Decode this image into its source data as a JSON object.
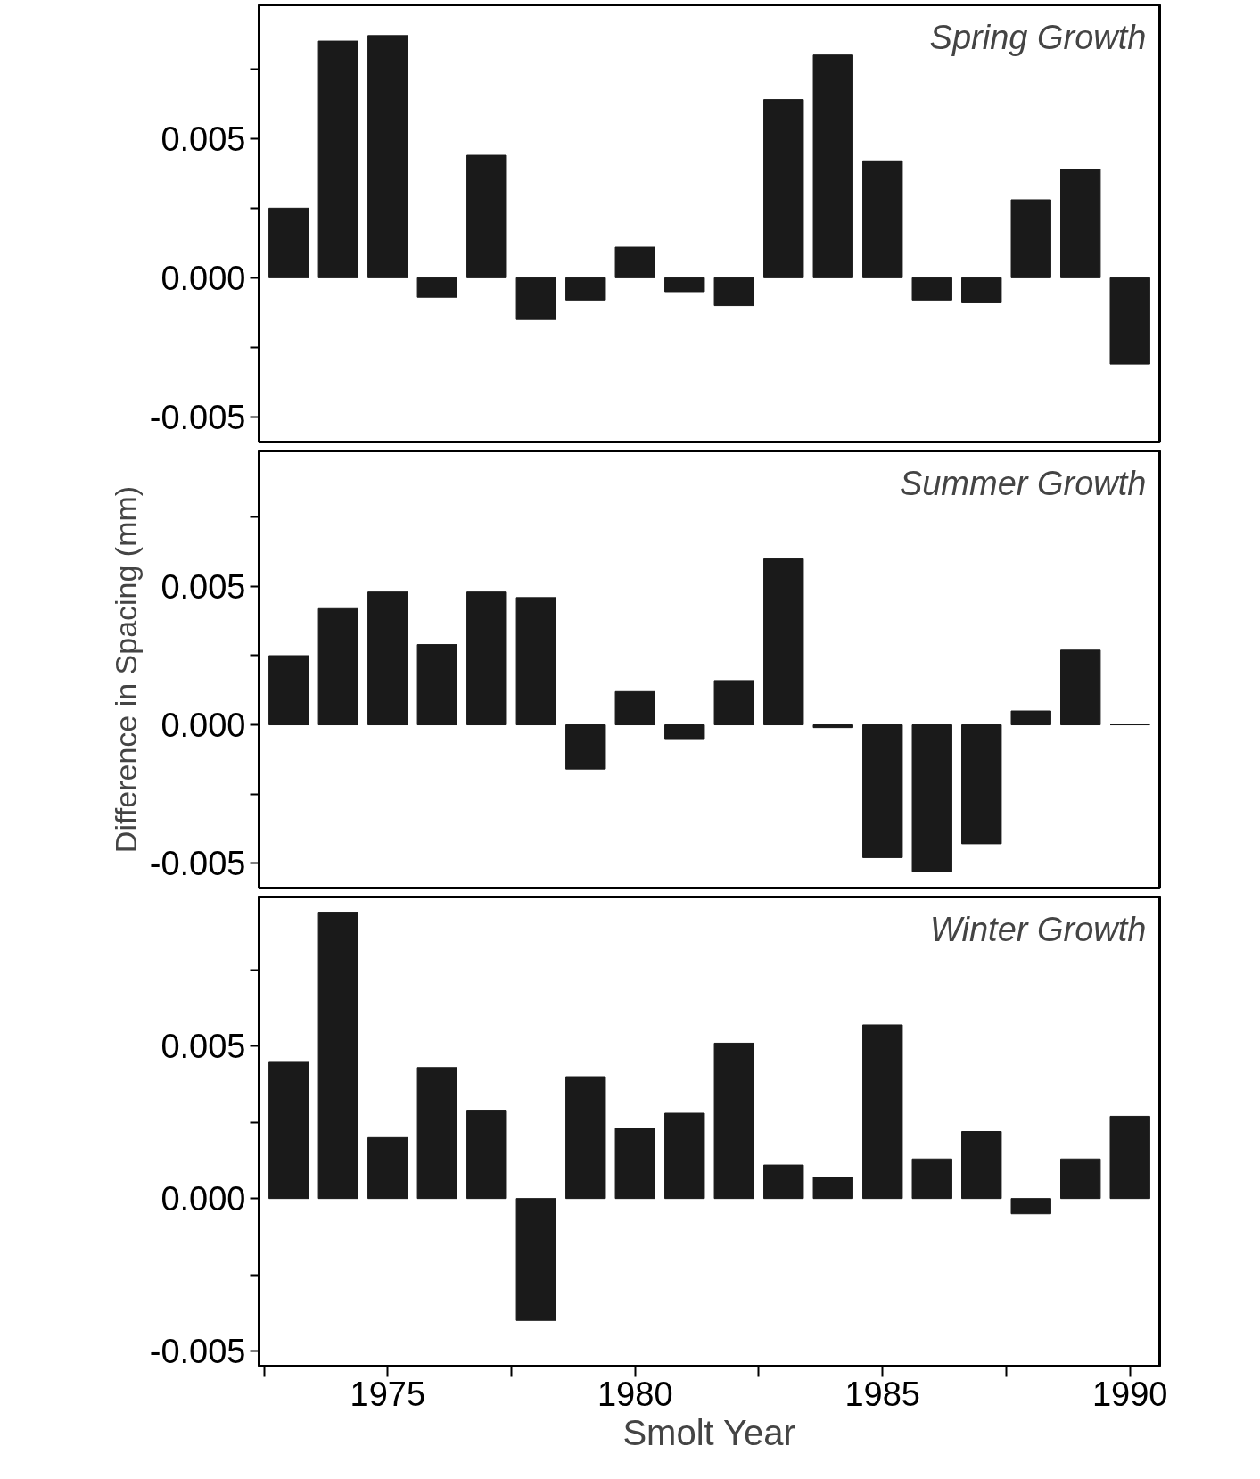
{
  "chart_data": [
    {
      "type": "bar",
      "x": [
        1973,
        1974,
        1975,
        1976,
        1977,
        1978,
        1979,
        1980,
        1981,
        1982,
        1983,
        1984,
        1985,
        1986,
        1987,
        1988,
        1989,
        1990
      ],
      "series": [
        {
          "color": "#1a1a1a",
          "values": [
            0.0025,
            0.0085,
            0.0087,
            -0.0007,
            0.0044,
            -0.0015,
            -0.0008,
            0.0011,
            -0.0005,
            -0.001,
            0.0064,
            0.008,
            0.0042,
            -0.0008,
            -0.0009,
            0.0028,
            0.0039,
            -0.0031
          ]
        }
      ],
      "xlim": [
        1972.4,
        1990.6
      ],
      "ylim": [
        -0.0059,
        0.0098
      ],
      "yticks": [
        {
          "value": -0.005,
          "label": "-0.005"
        },
        {
          "value": -0.0025,
          "label": null
        },
        {
          "value": 0,
          "label": "0.000"
        },
        {
          "value": 0.0025,
          "label": null
        },
        {
          "value": 0.005,
          "label": "0.005"
        },
        {
          "value": 0.0075,
          "label": null
        }
      ],
      "tick_labels": "y",
      "annotations": [
        "Spring Growth"
      ]
    },
    {
      "type": "bar",
      "x": [
        1973,
        1974,
        1975,
        1976,
        1977,
        1978,
        1979,
        1980,
        1981,
        1982,
        1983,
        1984,
        1985,
        1986,
        1987,
        1988,
        1989,
        1990
      ],
      "series": [
        {
          "color": "#1a1a1a",
          "values": [
            0.0025,
            0.0042,
            0.0048,
            0.0029,
            0.0048,
            0.0046,
            -0.0016,
            0.0012,
            -0.0005,
            0.0016,
            0.006,
            -0.0001,
            -0.0048,
            -0.0053,
            -0.0043,
            0.0005,
            0.0027,
            0.0
          ]
        }
      ],
      "xlim": [
        1972.4,
        1990.6
      ],
      "ylim": [
        -0.0059,
        0.0099
      ],
      "yticks": [
        {
          "value": -0.005,
          "label": "-0.005"
        },
        {
          "value": -0.0025,
          "label": null
        },
        {
          "value": 0,
          "label": "0.000"
        },
        {
          "value": 0.0025,
          "label": null
        },
        {
          "value": 0.005,
          "label": "0.005"
        },
        {
          "value": 0.0075,
          "label": null
        }
      ],
      "ylabel": "Difference in Spacing (mm)",
      "tick_labels": "y",
      "annotations": [
        "Summer Growth"
      ]
    },
    {
      "type": "bar",
      "x": [
        1973,
        1974,
        1975,
        1976,
        1977,
        1978,
        1979,
        1980,
        1981,
        1982,
        1983,
        1984,
        1985,
        1986,
        1987,
        1988,
        1989,
        1990
      ],
      "series": [
        {
          "color": "#1a1a1a",
          "values": [
            0.0045,
            0.0094,
            0.002,
            0.0043,
            0.0029,
            -0.004,
            0.004,
            0.0023,
            0.0028,
            0.0051,
            0.0011,
            0.0007,
            0.0057,
            0.0013,
            0.0022,
            -0.0005,
            0.0013,
            0.0027
          ]
        }
      ],
      "xlim": [
        1972.4,
        1990.6
      ],
      "ylim": [
        -0.0055,
        0.0099
      ],
      "xticks": [
        {
          "value": 1972.5,
          "label": null
        },
        1975,
        {
          "value": 1977.5,
          "label": null
        },
        1980,
        {
          "value": 1982.5,
          "label": null
        },
        1985,
        {
          "value": 1987.5,
          "label": null
        },
        1990
      ],
      "yticks": [
        {
          "value": -0.005,
          "label": "-0.005"
        },
        {
          "value": -0.0025,
          "label": null
        },
        {
          "value": 0,
          "label": "0.000"
        },
        {
          "value": 0.0025,
          "label": null
        },
        {
          "value": 0.005,
          "label": "0.005"
        },
        {
          "value": 0.0075,
          "label": null
        }
      ],
      "xlabel": "Smolt Year",
      "annotations": [
        "Winter Growth"
      ]
    }
  ]
}
